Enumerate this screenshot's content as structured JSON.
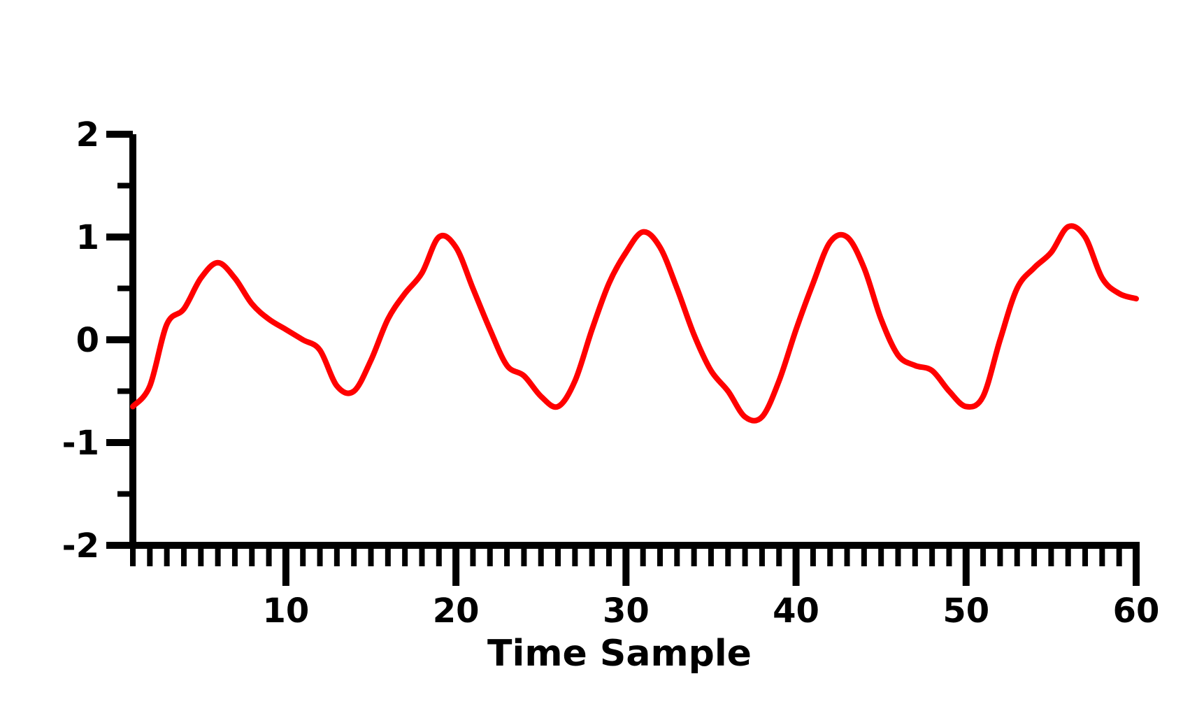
{
  "chart_data": {
    "type": "line",
    "title": "",
    "xlabel": "Time Sample",
    "ylabel": "",
    "xlim": [
      1,
      60
    ],
    "ylim": [
      -2,
      2
    ],
    "x_ticks": [
      10,
      20,
      30,
      40,
      50,
      60
    ],
    "y_ticks": [
      -2,
      -1,
      0,
      1,
      2
    ],
    "x_tick_labels": [
      "10",
      "20",
      "30",
      "40",
      "50",
      "60"
    ],
    "y_tick_labels": [
      "-2",
      "-1",
      "0",
      "1",
      "2"
    ],
    "grid": false,
    "legend": "none",
    "line_color": "#ff0000",
    "axis_color": "#000000",
    "series": [
      {
        "x": [
          1,
          2,
          3,
          4,
          5,
          6,
          7,
          8,
          9,
          10,
          11,
          12,
          13,
          14,
          15,
          16,
          17,
          18,
          19,
          20,
          21,
          22,
          23,
          24,
          25,
          26,
          27,
          28,
          29,
          30,
          31,
          32,
          33,
          34,
          35,
          36,
          37,
          38,
          39,
          40,
          41,
          42,
          43,
          44,
          45,
          46,
          47,
          48,
          49,
          50,
          51,
          52,
          53,
          54,
          55,
          56,
          57,
          58,
          59,
          60
        ],
        "values": [
          -0.65,
          -0.45,
          0.15,
          0.3,
          0.6,
          0.75,
          0.6,
          0.35,
          0.2,
          0.1,
          0.0,
          -0.1,
          -0.45,
          -0.5,
          -0.2,
          0.2,
          0.45,
          0.65,
          1.0,
          0.9,
          0.5,
          0.1,
          -0.25,
          -0.35,
          -0.55,
          -0.65,
          -0.4,
          0.1,
          0.55,
          0.85,
          1.05,
          0.9,
          0.5,
          0.05,
          -0.3,
          -0.5,
          -0.75,
          -0.75,
          -0.4,
          0.1,
          0.55,
          0.95,
          1.0,
          0.7,
          0.2,
          -0.15,
          -0.25,
          -0.3,
          -0.5,
          -0.65,
          -0.55,
          0.0,
          0.5,
          0.7,
          0.85,
          1.1,
          1.0,
          0.6,
          0.45,
          0.4
        ]
      }
    ]
  }
}
